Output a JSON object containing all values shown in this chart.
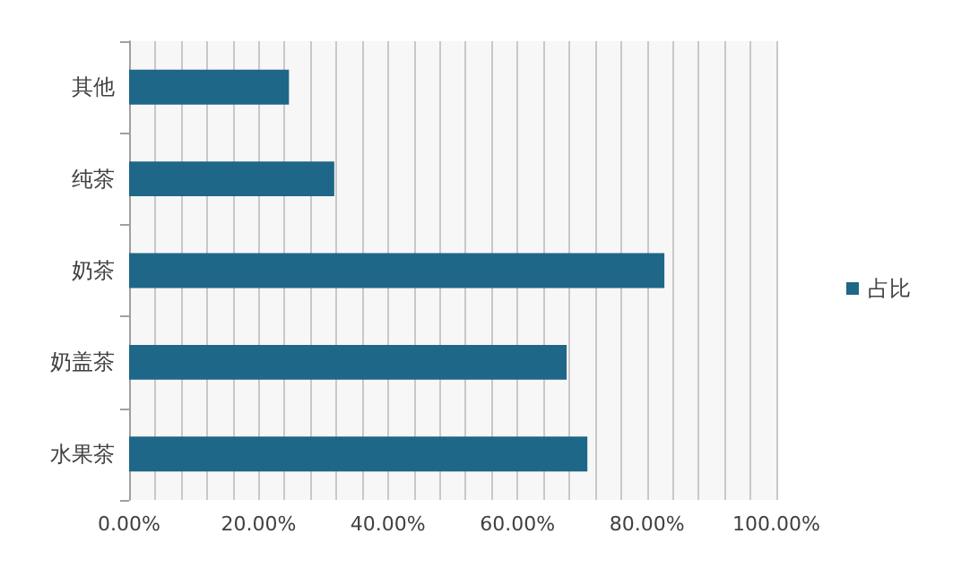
{
  "chart_data": {
    "type": "bar",
    "orientation": "horizontal",
    "categories": [
      "其他",
      "纯茶",
      "奶茶",
      "奶盖茶",
      "水果茶"
    ],
    "series": [
      {
        "name": "占比",
        "color": "#1f6788",
        "values": [
          24.7,
          31.7,
          82.7,
          67.6,
          70.8
        ]
      }
    ],
    "xlim": [
      0,
      100
    ],
    "xticks": [
      {
        "value": 0,
        "label": "0.00%"
      },
      {
        "value": 4,
        "label": null
      },
      {
        "value": 8,
        "label": null
      },
      {
        "value": 12,
        "label": null
      },
      {
        "value": 16,
        "label": null
      },
      {
        "value": 20,
        "label": "20.00%"
      },
      {
        "value": 24,
        "label": null
      },
      {
        "value": 28,
        "label": null
      },
      {
        "value": 32,
        "label": null
      },
      {
        "value": 36,
        "label": null
      },
      {
        "value": 40,
        "label": "40.00%"
      },
      {
        "value": 44,
        "label": null
      },
      {
        "value": 48,
        "label": null
      },
      {
        "value": 52,
        "label": null
      },
      {
        "value": 56,
        "label": null
      },
      {
        "value": 60,
        "label": "60.00%"
      },
      {
        "value": 64,
        "label": null
      },
      {
        "value": 68,
        "label": null
      },
      {
        "value": 72,
        "label": null
      },
      {
        "value": 76,
        "label": null
      },
      {
        "value": 80,
        "label": "80.00%"
      },
      {
        "value": 84,
        "label": null
      },
      {
        "value": 88,
        "label": null
      },
      {
        "value": 92,
        "label": null
      },
      {
        "value": 96,
        "label": null
      },
      {
        "value": 100,
        "label": "100.00%"
      }
    ],
    "grid": "x",
    "legend": "right"
  }
}
